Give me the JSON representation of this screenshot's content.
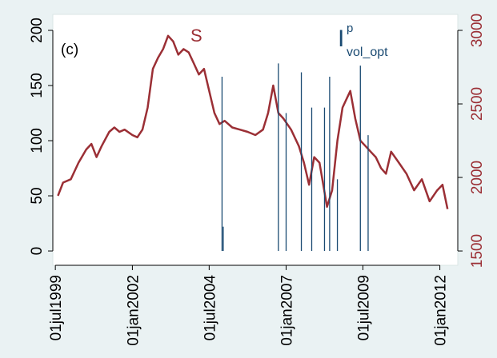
{
  "chart_data": {
    "type": "line",
    "panel_label": "(c)",
    "xlim": [
      "1999-06-01",
      "2012-08-01"
    ],
    "xticks": [
      {
        "value": "1999-07-01",
        "label": "01jul1999"
      },
      {
        "value": "2002-01-01",
        "label": "01jan2002"
      },
      {
        "value": "2004-07-01",
        "label": "01jul2004"
      },
      {
        "value": "2007-01-01",
        "label": "01jan2007"
      },
      {
        "value": "2009-07-01",
        "label": "01jul2009"
      },
      {
        "value": "2012-01-01",
        "label": "01jan2012"
      }
    ],
    "ylim": [
      -13,
      214.5
    ],
    "yticks": [
      0,
      50,
      100,
      150,
      200
    ],
    "y2lim": [
      1402.5,
      3108.75
    ],
    "y2ticks": [
      1500,
      2000,
      2500,
      3000
    ],
    "grid": false,
    "series": [
      {
        "name": "S",
        "color": "#9b2f35",
        "axis": "y2",
        "kind": "line",
        "x": [
          "1999-08-01",
          "1999-10-01",
          "2000-01-01",
          "2000-04-01",
          "2000-07-01",
          "2000-09-01",
          "2000-11-01",
          "2001-01-01",
          "2001-04-01",
          "2001-06-01",
          "2001-08-01",
          "2001-10-01",
          "2002-01-01",
          "2002-03-01",
          "2002-05-01",
          "2002-07-01",
          "2002-09-01",
          "2002-11-01",
          "2003-01-01",
          "2003-03-01",
          "2003-05-01",
          "2003-07-01",
          "2003-09-01",
          "2003-11-01",
          "2004-01-01",
          "2004-03-01",
          "2004-05-01",
          "2004-07-01",
          "2004-09-01",
          "2004-11-01",
          "2005-01-01",
          "2005-04-01",
          "2005-07-01",
          "2005-10-01",
          "2006-01-01",
          "2006-04-01",
          "2006-06-01",
          "2006-08-01",
          "2006-10-01",
          "2006-12-01",
          "2007-03-01",
          "2007-06-01",
          "2007-08-01",
          "2007-10-01",
          "2007-12-01",
          "2008-02-01",
          "2008-05-01",
          "2008-07-01",
          "2008-09-01",
          "2008-11-01",
          "2009-02-01",
          "2009-04-01",
          "2009-06-01",
          "2009-08-01",
          "2009-10-01",
          "2009-12-01",
          "2010-02-01",
          "2010-04-01",
          "2010-06-01",
          "2010-09-01",
          "2010-12-01",
          "2011-03-01",
          "2011-06-01",
          "2011-09-01",
          "2011-12-01",
          "2012-02-01",
          "2012-04-01"
        ],
        "values": [
          1875,
          1965,
          1988,
          2100,
          2190,
          2228,
          2138,
          2213,
          2310,
          2340,
          2310,
          2325,
          2288,
          2273,
          2325,
          2475,
          2738,
          2813,
          2873,
          2963,
          2925,
          2835,
          2873,
          2850,
          2775,
          2700,
          2738,
          2588,
          2438,
          2363,
          2385,
          2340,
          2325,
          2310,
          2288,
          2325,
          2438,
          2625,
          2438,
          2400,
          2325,
          2213,
          2100,
          1950,
          2138,
          2100,
          1800,
          1913,
          2250,
          2475,
          2588,
          2400,
          2250,
          2213,
          2175,
          2138,
          2063,
          2025,
          2175,
          2100,
          2025,
          1913,
          1988,
          1838,
          1913,
          1950,
          1785
        ]
      },
      {
        "name": "I",
        "name_superscript": "p",
        "name_subscript": "vol_opt",
        "color": "#1a4a72",
        "axis": "y",
        "kind": "spike",
        "x": [
          "2004-12-01",
          "2004-12-15",
          "2006-10-01",
          "2007-01-01",
          "2007-07-01",
          "2007-11-01",
          "2008-04-01",
          "2008-06-01",
          "2008-09-01",
          "2009-06-01",
          "2009-09-01"
        ],
        "values": [
          158,
          22,
          170,
          125,
          162,
          130,
          130,
          158,
          65,
          168,
          105
        ]
      }
    ]
  }
}
